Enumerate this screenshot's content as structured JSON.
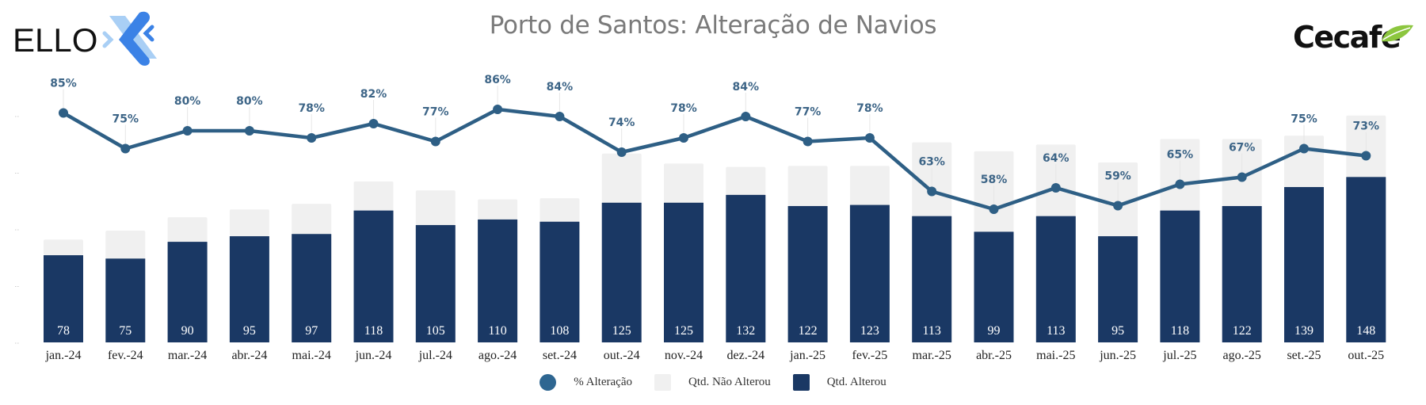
{
  "header": {
    "title": "Porto de Santos: Alteração de Navios",
    "left_logo_text": "ELLO",
    "right_logo_text": "Cecafe"
  },
  "colors": {
    "altered": "#1a3864",
    "not_altered": "#f0f0f0",
    "line": "#2e5f85",
    "pct_label": "#3d6587",
    "title": "#7a7a7a"
  },
  "legend": [
    {
      "label": "% Alteração",
      "swatch": "circle"
    },
    {
      "label": "Qtd. Não Alterou",
      "swatch": "light"
    },
    {
      "label": "Qtd. Alterou",
      "swatch": "dark"
    }
  ],
  "chart_data": {
    "type": "bar",
    "stacked": true,
    "title": "Porto de Santos: Alteração de Navios",
    "xlabel": "",
    "ylabel": "",
    "categories": [
      "jan.-24",
      "fev.-24",
      "mar.-24",
      "abr.-24",
      "mai.-24",
      "jun.-24",
      "jul.-24",
      "ago.-24",
      "set.-24",
      "out.-24",
      "nov.-24",
      "dez.-24",
      "jan.-25",
      "fev.-25",
      "mar.-25",
      "abr.-25",
      "mai.-25",
      "jun.-25",
      "jul.-25",
      "ago.-25",
      "set.-25",
      "out.-25"
    ],
    "series": [
      {
        "name": "Qtd. Alterou",
        "type": "bar",
        "values": [
          78,
          75,
          90,
          95,
          97,
          118,
          105,
          110,
          108,
          125,
          125,
          132,
          122,
          123,
          113,
          99,
          113,
          95,
          118,
          122,
          139,
          148
        ]
      },
      {
        "name": "Qtd. Não Alterou",
        "type": "bar",
        "values": [
          14,
          25,
          22,
          24,
          27,
          26,
          31,
          18,
          21,
          44,
          35,
          25,
          36,
          35,
          66,
          72,
          64,
          66,
          64,
          60,
          46,
          55
        ]
      },
      {
        "name": "% Alteração",
        "type": "line",
        "axis": "secondary",
        "values": [
          85,
          75,
          80,
          80,
          78,
          82,
          77,
          86,
          84,
          74,
          78,
          84,
          77,
          78,
          63,
          58,
          64,
          59,
          65,
          67,
          75,
          73
        ],
        "labels": [
          "85%",
          "75%",
          "80%",
          "80%",
          "78%",
          "82%",
          "77%",
          "86%",
          "84%",
          "74%",
          "78%",
          "84%",
          "77%",
          "78%",
          "63%",
          "58%",
          "64%",
          "59%",
          "65%",
          "67%",
          "75%",
          "73%"
        ]
      }
    ],
    "ylim": [
      0,
      220
    ],
    "y2lim": [
      0,
      100
    ],
    "grid": false,
    "legend_position": "bottom"
  }
}
